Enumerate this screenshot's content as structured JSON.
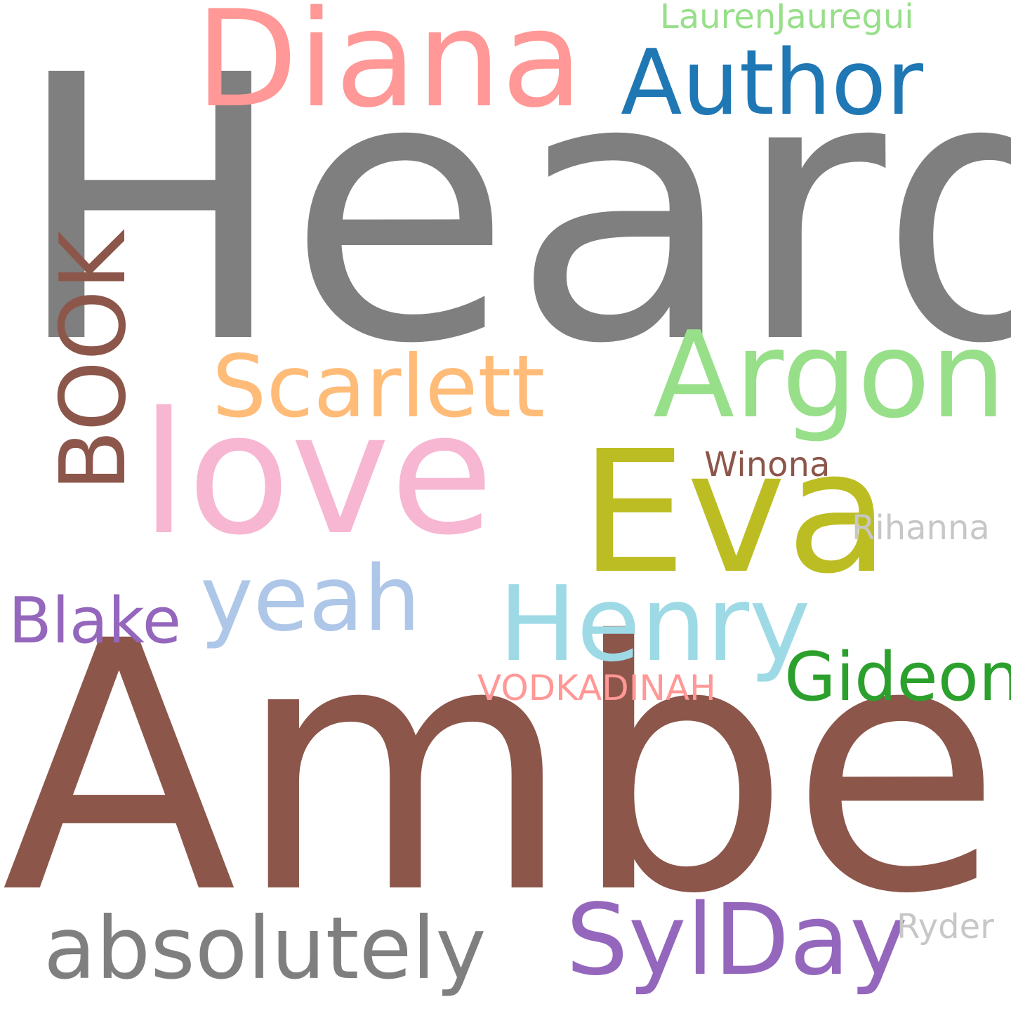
{
  "words": {
    "heard": {
      "text": "Heard",
      "color": "#7f7f7f"
    },
    "amber": {
      "text": "Amber",
      "color": "#8c564b"
    },
    "diana": {
      "text": "Diana",
      "color": "#ff9896"
    },
    "author": {
      "text": "Author",
      "color": "#1f77b4"
    },
    "laurenjauregui": {
      "text": "LaurenJauregui",
      "color": "#98df8a"
    },
    "love": {
      "text": "love",
      "color": "#f7b6d2"
    },
    "eva": {
      "text": "Eva",
      "color": "#bcbd22"
    },
    "scarlett": {
      "text": "Scarlett",
      "color": "#ffbb78"
    },
    "argon": {
      "text": "Argon",
      "color": "#98df8a"
    },
    "winona": {
      "text": "Winona",
      "color": "#8c564b"
    },
    "rihanna": {
      "text": "Rihanna",
      "color": "#c7c7c7"
    },
    "book": {
      "text": "BOOK",
      "color": "#8c564b"
    },
    "blake": {
      "text": "Blake",
      "color": "#9467bd"
    },
    "yeah": {
      "text": "yeah",
      "color": "#aec7e8"
    },
    "henry": {
      "text": "Henry",
      "color": "#9edae5"
    },
    "gideon": {
      "text": "Gideon",
      "color": "#2ca02c"
    },
    "vodkadinah": {
      "text": "VODKADINAH",
      "color": "#ff9896"
    },
    "absolutely": {
      "text": "absolutely",
      "color": "#7f7f7f"
    },
    "sylday": {
      "text": "SylDay",
      "color": "#9467bd"
    },
    "ryder": {
      "text": "Ryder",
      "color": "#c7c7c7"
    }
  }
}
